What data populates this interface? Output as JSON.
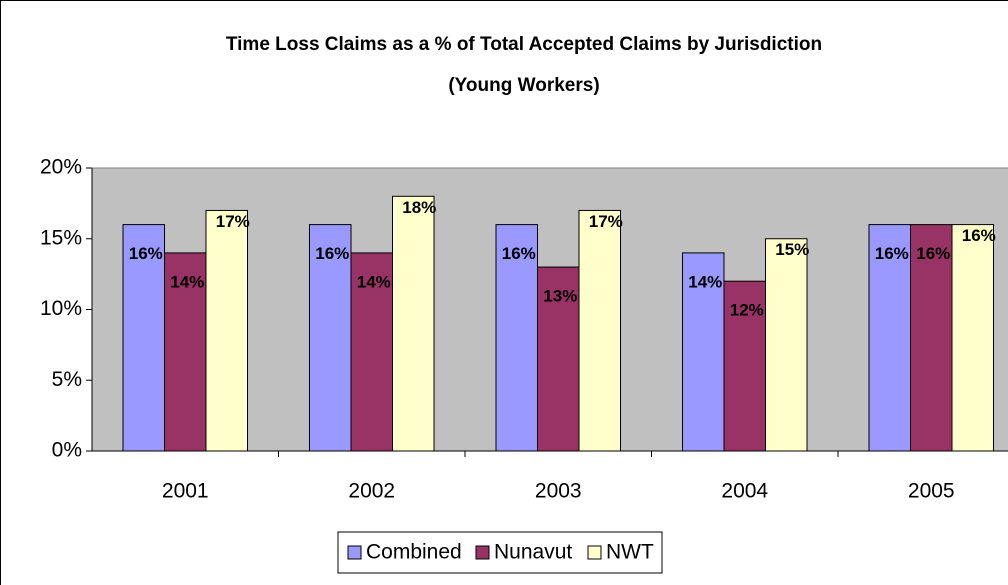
{
  "chart_data": {
    "type": "bar",
    "title": "Time Loss Claims as a % of Total Accepted Claims by Jurisdiction",
    "subtitle": "(Young Workers)",
    "categories": [
      "2001",
      "2002",
      "2003",
      "2004",
      "2005"
    ],
    "series": [
      {
        "name": "Combined",
        "color": "#9999ff",
        "values": [
          16,
          16,
          16,
          14,
          16
        ],
        "value_labels": [
          "16%",
          "16%",
          "16%",
          "14%",
          "16%"
        ]
      },
      {
        "name": "Nunavut",
        "color": "#993366",
        "values": [
          14,
          14,
          13,
          12,
          16
        ],
        "value_labels": [
          "14%",
          "14%",
          "13%",
          "12%",
          "16%"
        ]
      },
      {
        "name": "NWT",
        "color": "#ffffcc",
        "values": [
          17,
          18,
          17,
          15,
          16
        ],
        "value_labels": [
          "17%",
          "18%",
          "17%",
          "15%",
          "16%"
        ]
      }
    ],
    "ylim": [
      0,
      20
    ],
    "yticks": [
      {
        "value": 0,
        "label": "0%"
      },
      {
        "value": 5,
        "label": "5%"
      },
      {
        "value": 10,
        "label": "10%"
      },
      {
        "value": 15,
        "label": "15%"
      },
      {
        "value": 20,
        "label": "20%"
      }
    ],
    "grid": false,
    "legend": "bottom",
    "plot_background": "#c0c0c0"
  }
}
